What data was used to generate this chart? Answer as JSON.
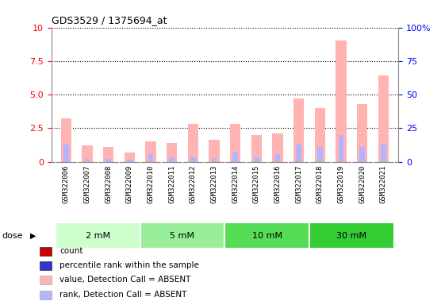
{
  "title": "GDS3529 / 1375694_at",
  "samples": [
    "GSM322006",
    "GSM322007",
    "GSM322008",
    "GSM322009",
    "GSM322010",
    "GSM322011",
    "GSM322012",
    "GSM322013",
    "GSM322014",
    "GSM322015",
    "GSM322016",
    "GSM322017",
    "GSM322018",
    "GSM322019",
    "GSM322020",
    "GSM322021"
  ],
  "count_values": [
    3.2,
    1.2,
    1.1,
    0.7,
    1.5,
    1.4,
    2.8,
    1.6,
    2.8,
    2.0,
    2.1,
    4.7,
    4.0,
    9.0,
    4.3,
    6.4
  ],
  "rank_values": [
    1.3,
    0.2,
    0.2,
    0.15,
    0.55,
    0.3,
    0.3,
    0.25,
    0.75,
    0.35,
    0.55,
    1.3,
    1.1,
    2.0,
    1.1,
    1.3
  ],
  "count_color_absent": "#ffb3b3",
  "rank_color_absent": "#b3b3ff",
  "ylim_left": [
    0,
    10
  ],
  "ylim_right": [
    0,
    100
  ],
  "yticks_left": [
    0,
    2.5,
    5.0,
    7.5,
    10
  ],
  "yticks_right": [
    0,
    25,
    50,
    75,
    100
  ],
  "ytick_labels_right": [
    "0",
    "25",
    "50",
    "75",
    "100%"
  ],
  "dose_groups": [
    {
      "label": "2 mM",
      "start": 0,
      "end": 4,
      "color": "#ccffcc"
    },
    {
      "label": "5 mM",
      "start": 4,
      "end": 8,
      "color": "#99ee99"
    },
    {
      "label": "10 mM",
      "start": 8,
      "end": 12,
      "color": "#55dd55"
    },
    {
      "label": "30 mM",
      "start": 12,
      "end": 16,
      "color": "#33cc33"
    }
  ],
  "dose_label": "dose",
  "legend_items": [
    {
      "label": "count",
      "color": "#cc0000"
    },
    {
      "label": "percentile rank within the sample",
      "color": "#3333cc"
    },
    {
      "label": "value, Detection Call = ABSENT",
      "color": "#ffb3b3"
    },
    {
      "label": "rank, Detection Call = ABSENT",
      "color": "#b3b3ff"
    }
  ],
  "bar_width": 0.5,
  "rank_bar_width": 0.25,
  "background_plot": "#ffffff",
  "xlabel_bg": "#d0d0d0"
}
